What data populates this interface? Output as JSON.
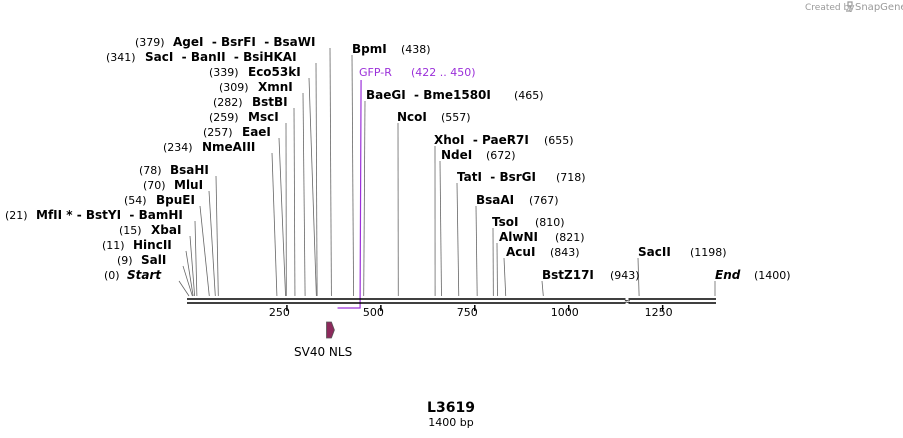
{
  "credit": {
    "prefix": "Created by",
    "brand": "SnapGene"
  },
  "map": {
    "name": "L3619",
    "length_label": "1400 bp",
    "length_bp": 1400
  },
  "colors": {
    "primer": "#9b30d9",
    "feature_fill": "#8c2a5c",
    "backbone": "#000000",
    "leader": "#777777"
  },
  "ticks": [
    "250",
    "500",
    "750",
    "1000",
    "1250"
  ],
  "sites": [
    {
      "label": "SacII",
      "pos": "(1198)",
      "bp": 1198,
      "label_first": true
    },
    {
      "label": "End",
      "pos": "(1400)",
      "bp": 1400,
      "label_first": true,
      "italic": true
    },
    {
      "label": "BstZ17I",
      "pos": "(943)",
      "bp": 943,
      "label_first": true
    },
    {
      "label": "AcuI",
      "pos": "(843)",
      "bp": 843,
      "label_first": true
    },
    {
      "label": "AlwNI",
      "pos": "(821)",
      "bp": 821,
      "label_first": true
    },
    {
      "label": "TsoI",
      "pos": "(810)",
      "bp": 810,
      "label_first": true
    },
    {
      "label": "BsaAI",
      "pos": "(767)",
      "bp": 767,
      "label_first": true
    },
    {
      "label": "TatI  - BsrGI",
      "pos": "(718)",
      "bp": 718,
      "label_first": true
    },
    {
      "label": "NdeI",
      "pos": "(672)",
      "bp": 672,
      "label_first": true
    },
    {
      "label": "XhoI  - PaeR7I",
      "pos": "(655)",
      "bp": 655,
      "label_first": true
    },
    {
      "label": "NcoI",
      "pos": "(557)",
      "bp": 557,
      "label_first": true
    },
    {
      "label": "BaeGI  - Bme1580I",
      "pos": "(465)",
      "bp": 465,
      "label_first": true
    },
    {
      "label": "BpmI",
      "pos": "(438)",
      "bp": 438,
      "label_first": true
    },
    {
      "label": "AgeI  - BsrFI  - BsaWI",
      "pos": "(379)",
      "bp": 379,
      "label_first": false
    },
    {
      "label": "SacI  - BanII  - BsiHKAI",
      "pos": "(341)",
      "bp": 341,
      "label_first": false
    },
    {
      "label": "Eco53kI",
      "pos": "(339)",
      "bp": 339,
      "label_first": false
    },
    {
      "label": "XmnI",
      "pos": "(309)",
      "bp": 309,
      "label_first": false
    },
    {
      "label": "BstBI",
      "pos": "(282)",
      "bp": 282,
      "label_first": false
    },
    {
      "label": "MscI",
      "pos": "(259)",
      "bp": 259,
      "label_first": false
    },
    {
      "label": "EaeI",
      "pos": "(257)",
      "bp": 257,
      "label_first": false
    },
    {
      "label": "NmeAIII",
      "pos": "(234)",
      "bp": 234,
      "label_first": false
    },
    {
      "label": "BsaHI",
      "pos": "(78)",
      "bp": 78,
      "label_first": false
    },
    {
      "label": "MluI",
      "pos": "(70)",
      "bp": 70,
      "label_first": false
    },
    {
      "label": "BpuEI",
      "pos": "(54)",
      "bp": 54,
      "label_first": false
    },
    {
      "label": "MfII * - BstYI  - BamHI",
      "pos": "(21)",
      "bp": 21,
      "label_first": false
    },
    {
      "label": "XbaI",
      "pos": "(15)",
      "bp": 15,
      "label_first": false
    },
    {
      "label": "HincII",
      "pos": "(11)",
      "bp": 11,
      "label_first": false
    },
    {
      "label": "SalI",
      "pos": "(9)",
      "bp": 9,
      "label_first": false
    },
    {
      "label": "Start",
      "pos": "(0)",
      "bp": 0,
      "label_first": false,
      "italic": true
    }
  ],
  "primer": {
    "label": "GFP-R",
    "range": "(422 .. 450)",
    "start_bp": 422,
    "end_bp": 450
  },
  "feature": {
    "label": "SV40 NLS",
    "start_bp": 366,
    "end_bp": 387
  }
}
